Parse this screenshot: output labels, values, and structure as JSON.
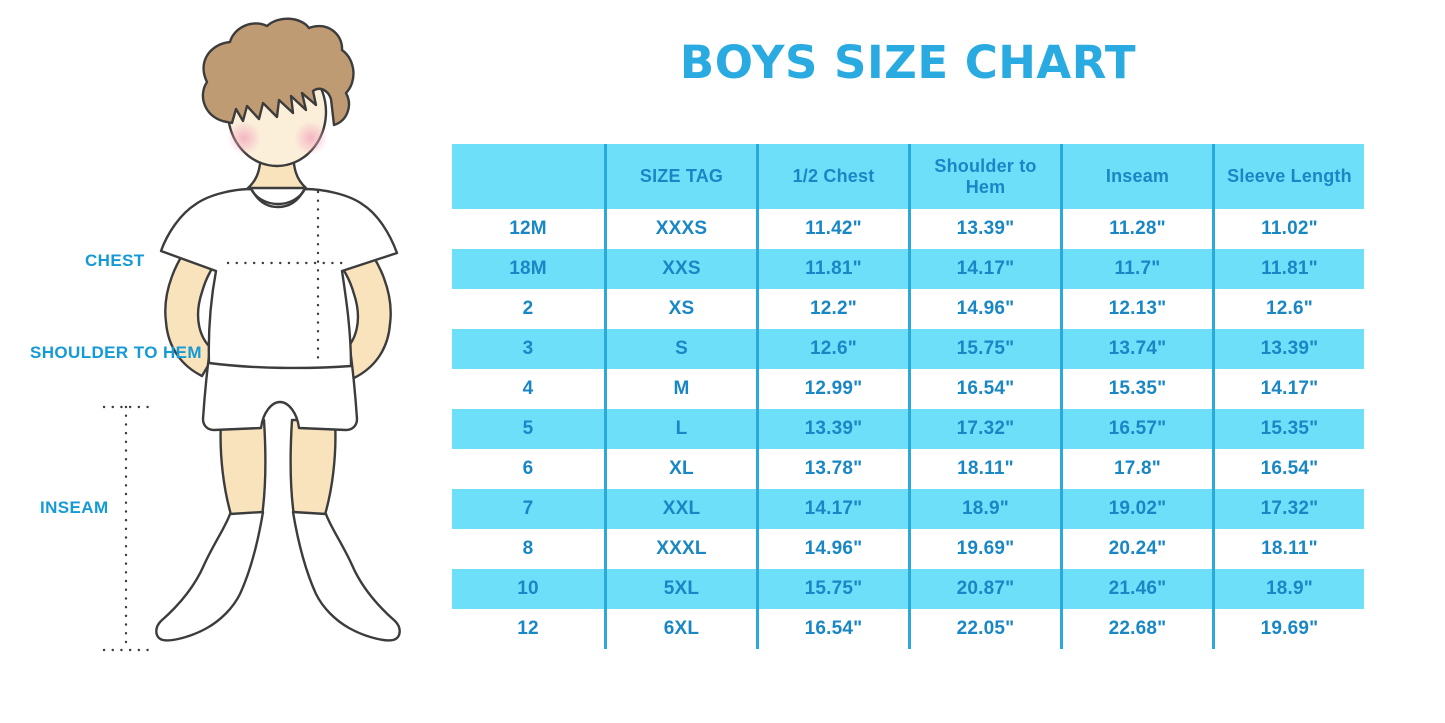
{
  "title": "BOYS SIZE CHART",
  "figure": {
    "description": "boy-with-measurement-lines",
    "labels": {
      "chest": "CHEST",
      "shoulder_to_hem": "SHOULDER TO HEM",
      "inseam": "INSEAM"
    }
  },
  "table": {
    "headers": [
      "",
      "SIZE TAG",
      "1/2 Chest",
      "Shoulder to Hem",
      "Inseam",
      "Sleeve Length"
    ],
    "rows": [
      [
        "12M",
        "XXXS",
        "11.42\"",
        "13.39\"",
        "11.28\"",
        "11.02\""
      ],
      [
        "18M",
        "XXS",
        "11.81\"",
        "14.17\"",
        "11.7\"",
        "11.81\""
      ],
      [
        "2",
        "XS",
        "12.2\"",
        "14.96\"",
        "12.13\"",
        "12.6\""
      ],
      [
        "3",
        "S",
        "12.6\"",
        "15.75\"",
        "13.74\"",
        "13.39\""
      ],
      [
        "4",
        "M",
        "12.99\"",
        "16.54\"",
        "15.35\"",
        "14.17\""
      ],
      [
        "5",
        "L",
        "13.39\"",
        "17.32\"",
        "16.57\"",
        "15.35\""
      ],
      [
        "6",
        "XL",
        "13.78\"",
        "18.11\"",
        "17.8\"",
        "16.54\""
      ],
      [
        "7",
        "XXL",
        "14.17\"",
        "18.9\"",
        "19.02\"",
        "17.32\""
      ],
      [
        "8",
        "XXXL",
        "14.96\"",
        "19.69\"",
        "20.24\"",
        "18.11\""
      ],
      [
        "10",
        "5XL",
        "15.75\"",
        "20.87\"",
        "21.46\"",
        "18.9\""
      ],
      [
        "12",
        "6XL",
        "16.54\"",
        "22.05\"",
        "22.68\"",
        "19.69\""
      ]
    ]
  },
  "chart_data": {
    "type": "table",
    "title": "BOYS SIZE CHART",
    "columns": [
      "",
      "SIZE TAG",
      "1/2 Chest",
      "Shoulder to Hem",
      "Inseam",
      "Sleeve Length"
    ],
    "rows": [
      [
        "12M",
        "XXXS",
        "11.42\"",
        "13.39\"",
        "11.28\"",
        "11.02\""
      ],
      [
        "18M",
        "XXS",
        "11.81\"",
        "14.17\"",
        "11.7\"",
        "11.81\""
      ],
      [
        "2",
        "XS",
        "12.2\"",
        "14.96\"",
        "12.13\"",
        "12.6\""
      ],
      [
        "3",
        "S",
        "12.6\"",
        "15.75\"",
        "13.74\"",
        "13.39\""
      ],
      [
        "4",
        "M",
        "12.99\"",
        "16.54\"",
        "15.35\"",
        "14.17\""
      ],
      [
        "5",
        "L",
        "13.39\"",
        "17.32\"",
        "16.57\"",
        "15.35\""
      ],
      [
        "6",
        "XL",
        "13.78\"",
        "18.11\"",
        "17.8\"",
        "16.54\""
      ],
      [
        "7",
        "XXL",
        "14.17\"",
        "18.9\"",
        "19.02\"",
        "17.32\""
      ],
      [
        "8",
        "XXXL",
        "14.96\"",
        "19.69\"",
        "20.24\"",
        "18.11\""
      ],
      [
        "10",
        "5XL",
        "15.75\"",
        "20.87\"",
        "21.46\"",
        "18.9\""
      ],
      [
        "12",
        "6XL",
        "16.54\"",
        "22.05\"",
        "22.68\"",
        "19.69\""
      ]
    ],
    "annotations": [
      "CHEST",
      "SHOULDER TO HEM",
      "INSEAM"
    ],
    "stripe_pattern": "header and every second data row filled light blue",
    "units": "inches"
  },
  "colors": {
    "title_blue": "#29ABE2",
    "stripe": "#6EDFF9",
    "divider": "#2BA9DB",
    "cell_text": "#1987C5",
    "label_blue": "#149AD6",
    "dot_blue": "#29A8E2"
  }
}
